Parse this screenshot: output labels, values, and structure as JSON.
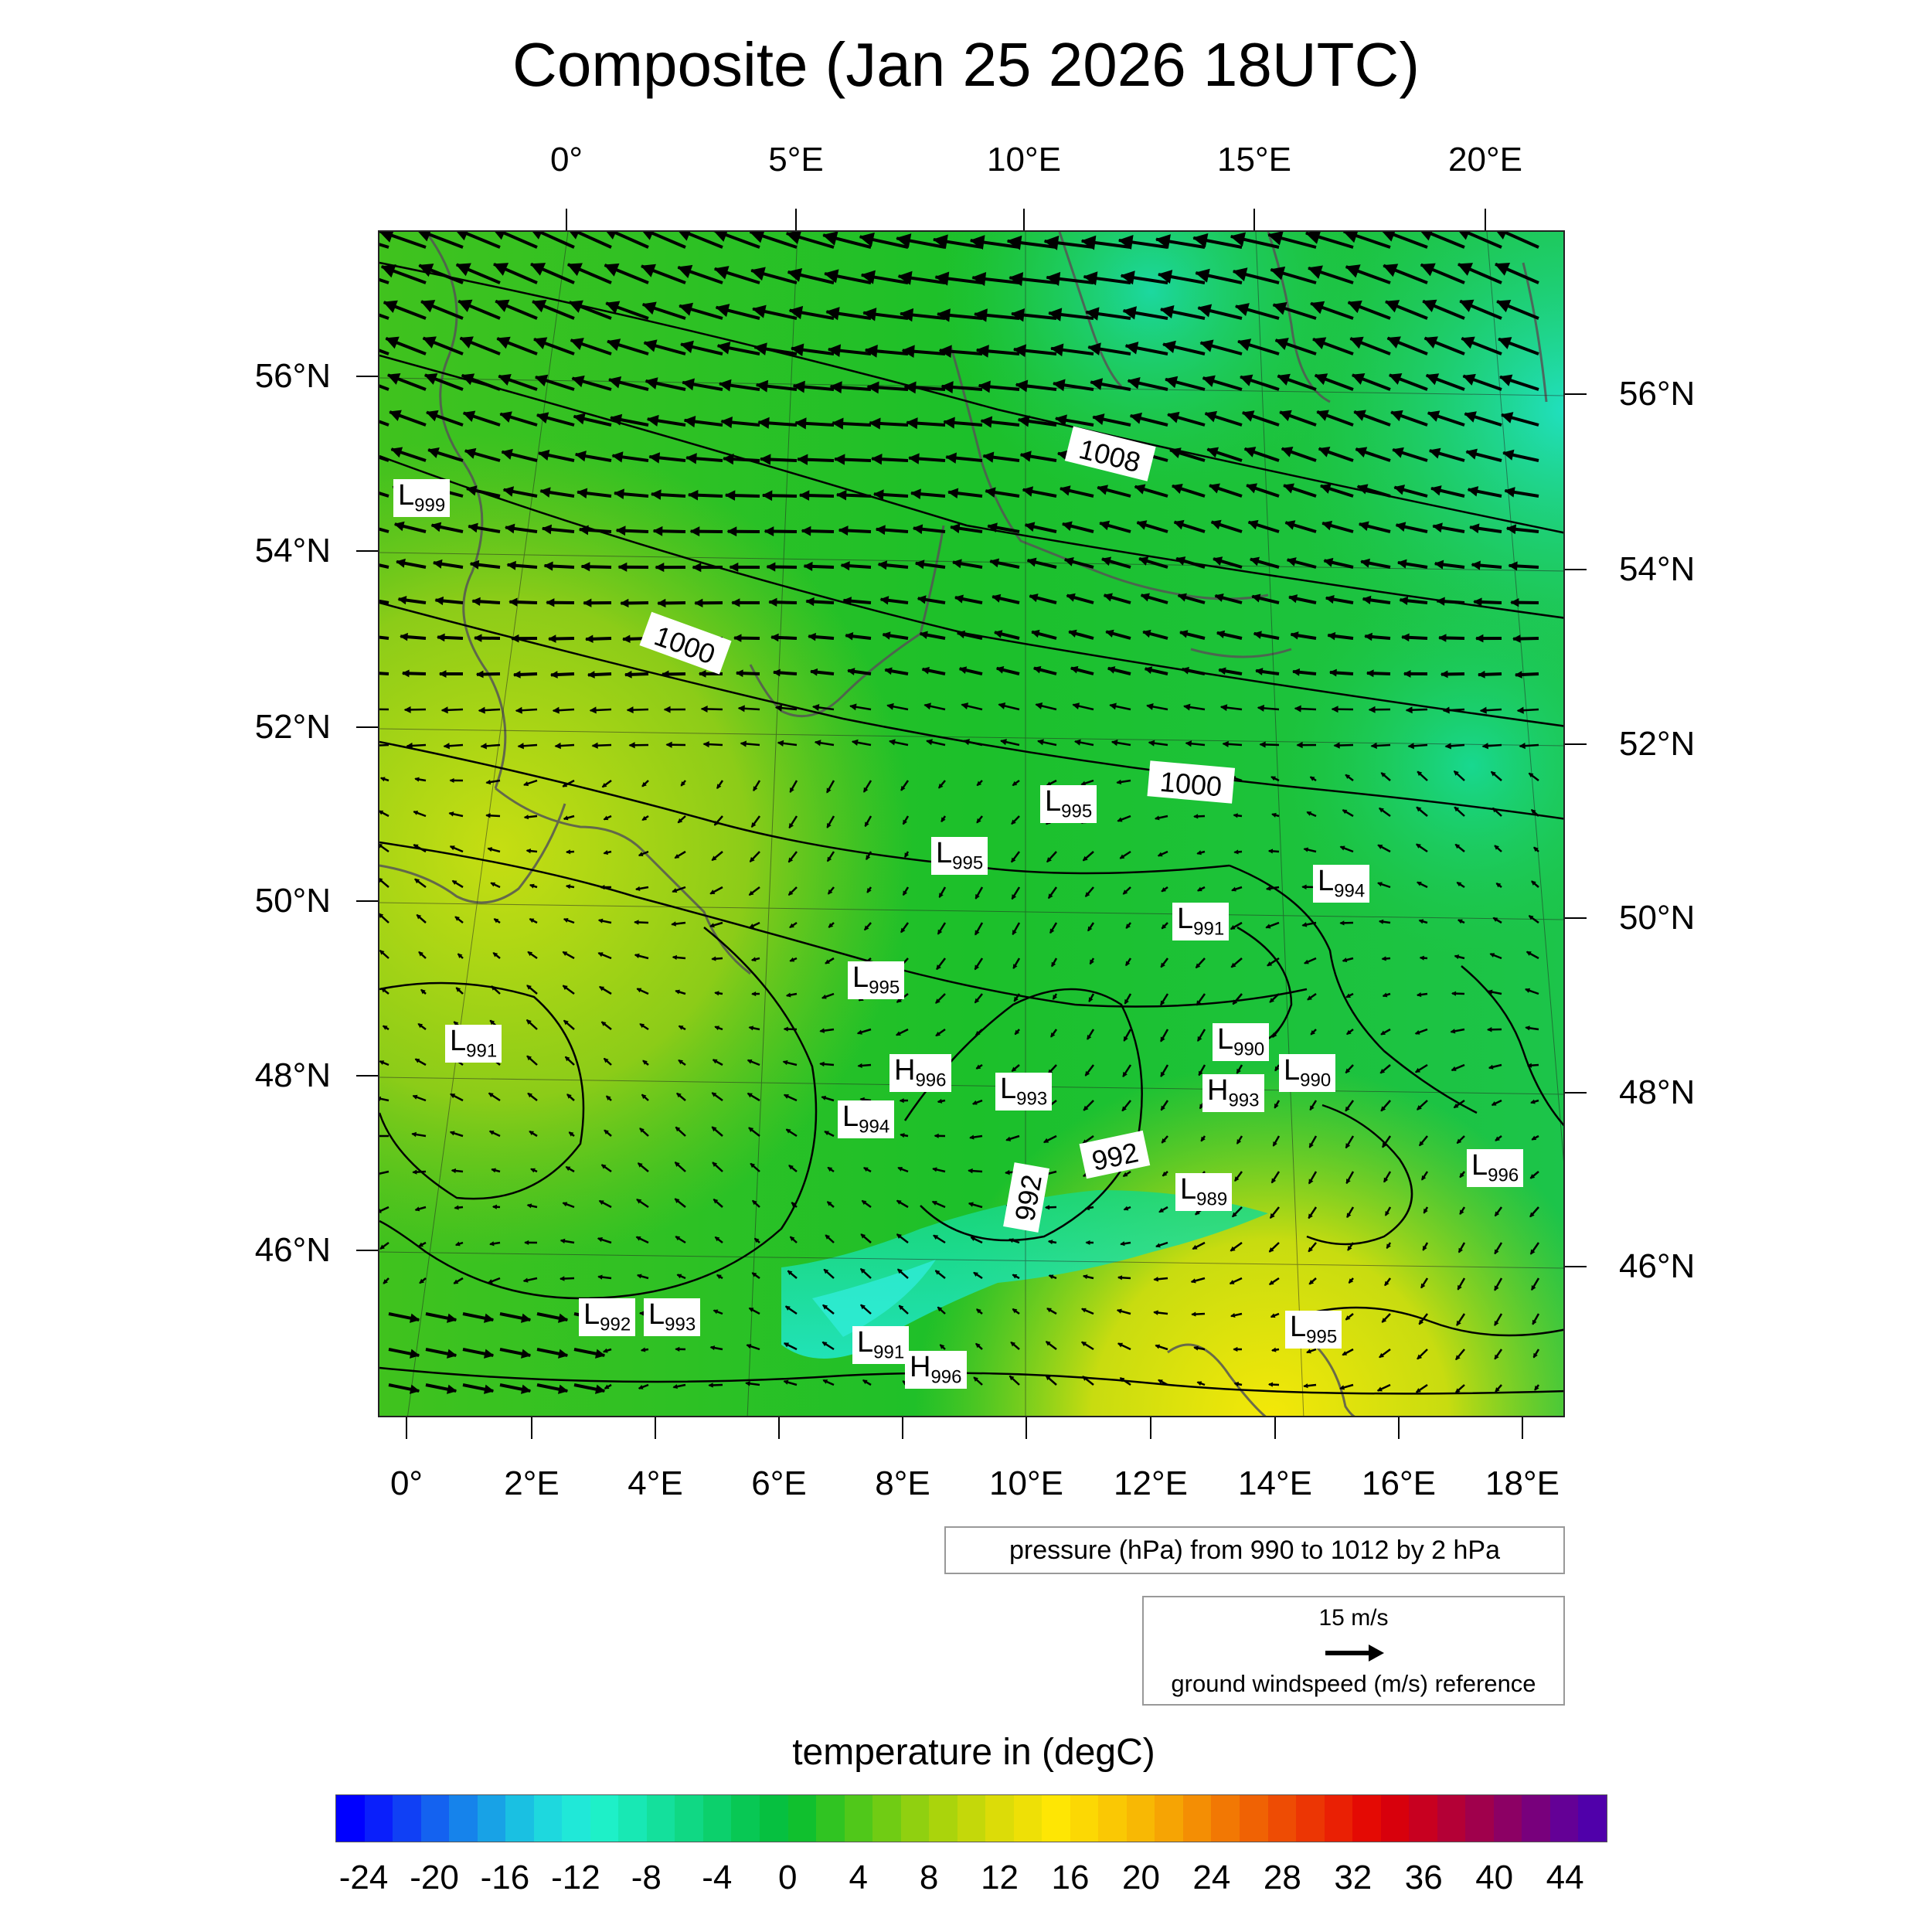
{
  "title": "Composite (Jan 25 2026 18UTC)",
  "top_lon_ticks": [
    "0°",
    "5°E",
    "10°E",
    "15°E",
    "20°E"
  ],
  "bottom_lon_ticks": [
    "0°",
    "2°E",
    "4°E",
    "6°E",
    "8°E",
    "10°E",
    "12°E",
    "14°E",
    "16°E",
    "18°E"
  ],
  "left_lat_ticks": [
    "56°N",
    "54°N",
    "52°N",
    "50°N",
    "48°N",
    "46°N"
  ],
  "right_lat_ticks": [
    "56°N",
    "54°N",
    "52°N",
    "50°N",
    "48°N",
    "46°N"
  ],
  "pressure_note": "pressure (hPa) from 990 to 1012 by 2 hPa",
  "wind_reference": {
    "speed": "15 m/s",
    "caption": "ground windspeed (m/s) reference"
  },
  "colorbar": {
    "title": "temperature in (degC)",
    "labels": [
      "-24",
      "-20",
      "-16",
      "-12",
      "-8",
      "-4",
      "0",
      "4",
      "8",
      "12",
      "16",
      "20",
      "24",
      "28",
      "32",
      "36",
      "40",
      "44"
    ],
    "colors": [
      "#0000ff",
      "#0a1ffb",
      "#1040f5",
      "#1462f0",
      "#1683eb",
      "#18a2e6",
      "#1ac0e2",
      "#1ed8de",
      "#20e8d8",
      "#1ef0c8",
      "#18e8b4",
      "#14e09c",
      "#10d884",
      "#0cd06c",
      "#08c854",
      "#06c040",
      "#10c02e",
      "#30c422",
      "#50c81a",
      "#70cc14",
      "#90d010",
      "#aad40c",
      "#c4d80a",
      "#dcdc08",
      "#eee006",
      "#fee604",
      "#fcd804",
      "#fac804",
      "#f8b804",
      "#f6a404",
      "#f48e04",
      "#f27804",
      "#f06204",
      "#ee4c04",
      "#ec3604",
      "#ea2004",
      "#e40a04",
      "#d8000c",
      "#c80020",
      "#b40036",
      "#a0004c",
      "#8c0064",
      "#78007c",
      "#640096",
      "#5000aa"
    ]
  },
  "lows_highs": [
    {
      "type": "L",
      "value": "999"
    },
    {
      "type": "L",
      "value": "995"
    },
    {
      "type": "L",
      "value": "995"
    },
    {
      "type": "L",
      "value": "994"
    },
    {
      "type": "L",
      "value": "991"
    },
    {
      "type": "L",
      "value": "995"
    },
    {
      "type": "L",
      "value": "991"
    },
    {
      "type": "L",
      "value": "990"
    },
    {
      "type": "H",
      "value": "996"
    },
    {
      "type": "L",
      "value": "993"
    },
    {
      "type": "L",
      "value": "990"
    },
    {
      "type": "H",
      "value": "993"
    },
    {
      "type": "L",
      "value": "994"
    },
    {
      "type": "L",
      "value": "996"
    },
    {
      "type": "L",
      "value": "989"
    },
    {
      "type": "L",
      "value": "992"
    },
    {
      "type": "L",
      "value": "993"
    },
    {
      "type": "L",
      "value": "991"
    },
    {
      "type": "H",
      "value": "996"
    },
    {
      "type": "L",
      "value": "995"
    }
  ],
  "contour_labels": [
    "1008",
    "1000",
    "1000",
    "992",
    "992"
  ]
}
